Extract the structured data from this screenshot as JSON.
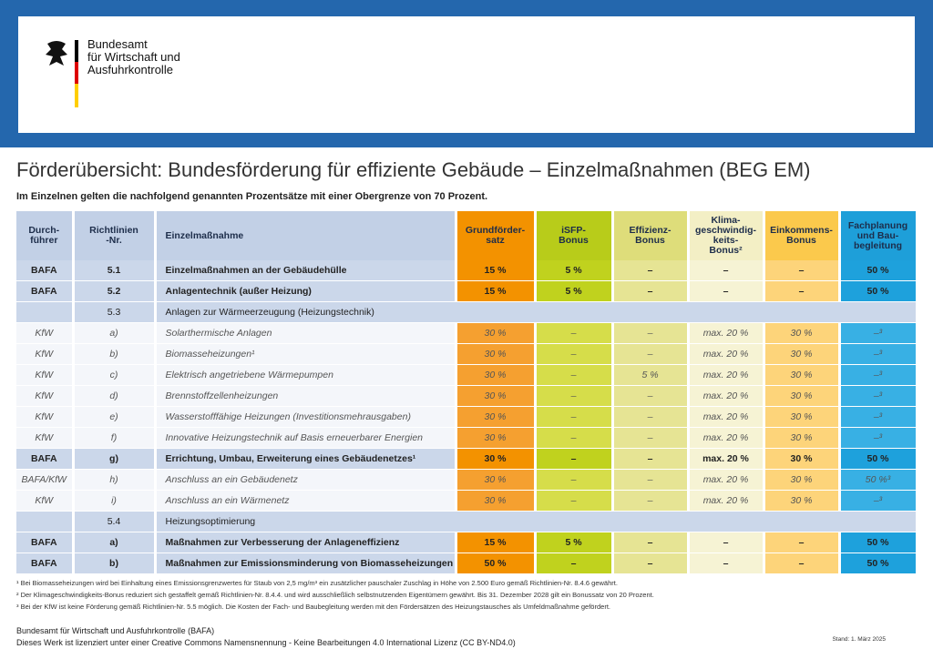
{
  "header": {
    "org": "Bundesamt\nfür Wirtschaft und\nAusfuhrkontrolle"
  },
  "title": "Förderübersicht: Bundesförderung für effiziente Gebäude – Einzelmaßnahmen (BEG EM)",
  "subtitle": "Im Einzelnen gelten die nachfolgend genannten Prozentsätze mit einer Obergrenze von 70 Prozent.",
  "table": {
    "columns": [
      "Durch-\nführer",
      "Richtlinien\n-Nr.",
      "Einzelmaßnahme",
      "Grundförder-\nsatz",
      "iSFP-\nBonus",
      "Effizienz-\nBonus",
      "Klima-\ngeschwindig-\nkeits-\nBonus²",
      "Einkommens-\nBonus",
      "Fachplanung\nund Bau-\nbegleitung"
    ],
    "rows": [
      [
        "BAFA",
        "5.1",
        "Einzelmaßnahmen an der Gebäudehülle",
        "15 %",
        "5 %",
        "–",
        "–",
        "–",
        "50 %"
      ],
      [
        "BAFA",
        "5.2",
        "Anlagentechnik (außer Heizung)",
        "15 %",
        "5 %",
        "–",
        "–",
        "–",
        "50 %"
      ],
      [
        "5.3",
        "Anlagen zur Wärmeerzeugung (Heizungstechnik)"
      ],
      [
        "KfW",
        "a)",
        "Solarthermische Anlagen",
        "30 %",
        "–",
        "–",
        "max. 20 %",
        "30 %",
        "–³"
      ],
      [
        "KfW",
        "b)",
        "Biomasseheizungen¹",
        "30 %",
        "–",
        "–",
        "max. 20 %",
        "30 %",
        "–³"
      ],
      [
        "KfW",
        "c)",
        "Elektrisch angetriebene Wärmepumpen",
        "30 %",
        "–",
        "5 %",
        "max. 20 %",
        "30 %",
        "–³"
      ],
      [
        "KfW",
        "d)",
        "Brennstoffzellenheizungen",
        "30 %",
        "–",
        "–",
        "max. 20 %",
        "30 %",
        "–³"
      ],
      [
        "KfW",
        "e)",
        "Wasserstofffähige Heizungen (Investitionsmehrausgaben)",
        "30 %",
        "–",
        "–",
        "max. 20 %",
        "30 %",
        "–³"
      ],
      [
        "KfW",
        "f)",
        "Innovative Heizungstechnik auf Basis erneuerbarer Energien",
        "30 %",
        "–",
        "–",
        "max. 20 %",
        "30 %",
        "–³"
      ],
      [
        "BAFA",
        "g)",
        "Errichtung, Umbau, Erweiterung eines Gebäudenetzes¹",
        "30 %",
        "–",
        "–",
        "max. 20 %",
        "30 %",
        "50 %"
      ],
      [
        "BAFA/KfW",
        "h)",
        "Anschluss an ein Gebäudenetz",
        "30 %",
        "–",
        "–",
        "max. 20 %",
        "30 %",
        "50 %³"
      ],
      [
        "KfW",
        "i)",
        "Anschluss an ein Wärmenetz",
        "30 %",
        "–",
        "–",
        "max. 20 %",
        "30 %",
        "–³"
      ],
      [
        "5.4",
        "Heizungsoptimierung"
      ],
      [
        "BAFA",
        "a)",
        "Maßnahmen zur Verbesserung der Anlageneffizienz",
        "15 %",
        "5 %",
        "–",
        "–",
        "–",
        "50 %"
      ],
      [
        "BAFA",
        "b)",
        "Maßnahmen zur Emissionsminderung von Biomasseheizungen",
        "50 %",
        "–",
        "–",
        "–",
        "–",
        "50 %"
      ]
    ]
  },
  "footnotes": [
    "¹ Bei Biomasseheizungen wird bei Einhaltung eines Emissionsgrenzwertes für Staub von 2,5 mg/m³ ein zusätzlicher pauschaler Zuschlag in Höhe von 2.500 Euro gemäß Richtlinien-Nr. 8.4.6 gewährt.",
    "² Der Klimageschwindigkeits-Bonus reduziert sich gestaffelt gemäß Richtlinien-Nr. 8.4.4. und wird ausschließlich selbstnutzenden Eigentümern gewährt. Bis 31. Dezember 2028 gilt ein Bonussatz von 20 Prozent.",
    "³ Bei der KfW ist keine Förderung gemäß Richtlinien-Nr. 5.5 möglich. Die Kosten der Fach- und Baubegleitung werden mit den Fördersätzen des Heizungstausches als Umfeldmaßnahme gefördert."
  ],
  "footer": {
    "org": "Bundesamt für Wirtschaft und Ausfuhrkontrolle (BAFA)",
    "license": "Dieses Werk ist lizenziert unter einer Creative Commons Namensnennung - Keine Bearbeitungen 4.0 International Lizenz (CC BY-ND4.0)",
    "date": "Stand: 1. März 2025"
  }
}
